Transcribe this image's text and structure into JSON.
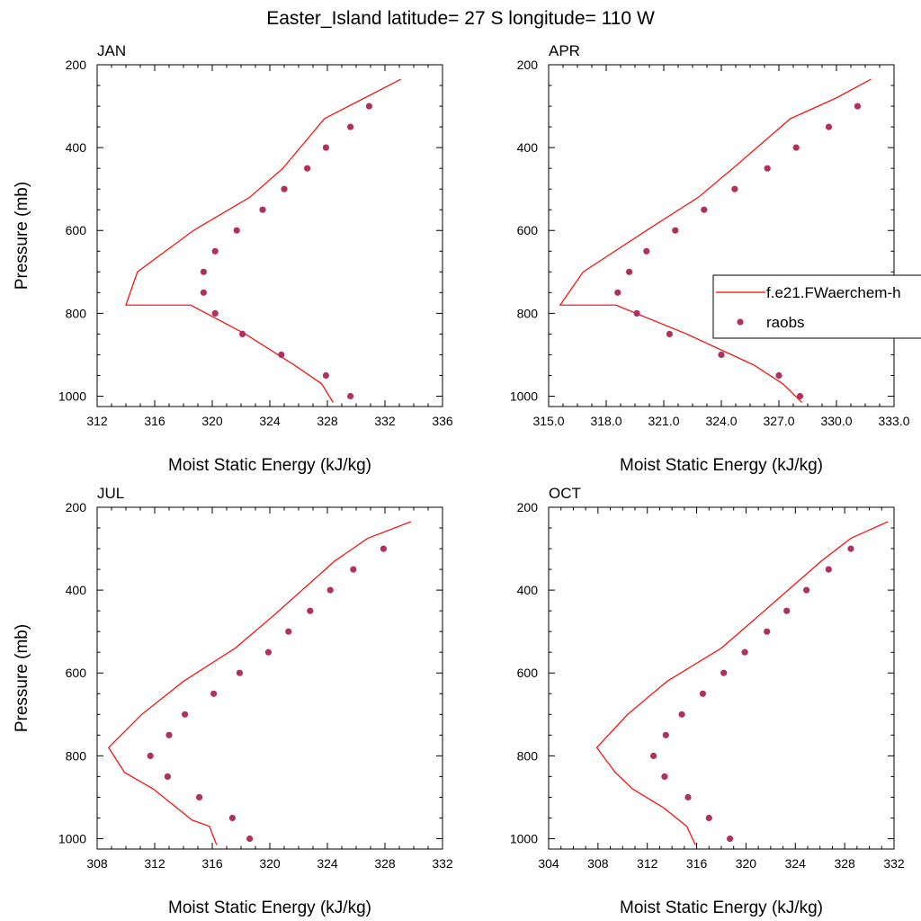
{
  "title": "Easter_Island  latitude= 27 S longitude= 110 W",
  "colors": {
    "model": "#ff0000",
    "obs": "#b03060"
  },
  "legend": {
    "model_label": "f.e21.FWaerchem-h",
    "obs_label": "raobs"
  },
  "chart_data": [
    {
      "type": "line",
      "title": "JAN",
      "xlabel": "Moist Static Energy (kJ/kg)",
      "ylabel": "Pressure (mb)",
      "xlim": [
        312,
        336
      ],
      "ylim": [
        200,
        1025
      ],
      "xticks": [
        312,
        316,
        320,
        324,
        328,
        332,
        336
      ],
      "xticklabels": [
        "312",
        "316",
        "320",
        "324",
        "328",
        "332",
        "336"
      ],
      "yticks": [
        200,
        400,
        600,
        800,
        1000
      ],
      "yticklabels": [
        "200",
        "400",
        "600",
        "800",
        "1000"
      ],
      "series": [
        {
          "kind": "line",
          "x": [
            328.4,
            327.6,
            325.7,
            322.3,
            318.5,
            314.0,
            314.8,
            318.7,
            322.6,
            324.9,
            327.8,
            330.6,
            333.1
          ],
          "y": [
            1015,
            970,
            925,
            850,
            780,
            780,
            700,
            600,
            520,
            450,
            330,
            280,
            235
          ]
        },
        {
          "kind": "scatter",
          "x": [
            329.6,
            327.9,
            324.8,
            322.1,
            320.2,
            319.4,
            319.4,
            320.2,
            321.7,
            323.5,
            325.0,
            326.6,
            327.9,
            329.6,
            330.9
          ],
          "y": [
            1000,
            950,
            900,
            850,
            800,
            750,
            700,
            650,
            600,
            550,
            500,
            450,
            400,
            350,
            300
          ]
        }
      ]
    },
    {
      "type": "line",
      "title": "APR",
      "xlabel": "Moist Static Energy (kJ/kg)",
      "ylabel": "",
      "xlim": [
        315,
        333
      ],
      "ylim": [
        200,
        1025
      ],
      "xticks": [
        315,
        318,
        321,
        324,
        327,
        330,
        333
      ],
      "xticklabels": [
        "315.0",
        "318.0",
        "321.0",
        "324.0",
        "327.0",
        "330.0",
        "333.0"
      ],
      "yticks": [
        200,
        400,
        600,
        800,
        1000
      ],
      "yticklabels": [
        "200",
        "400",
        "600",
        "800",
        "1000"
      ],
      "series": [
        {
          "kind": "line",
          "x": [
            328.2,
            327.2,
            325.7,
            322.2,
            318.5,
            315.6,
            316.8,
            320.1,
            322.8,
            324.6,
            327.6,
            330.0,
            331.8
          ],
          "y": [
            1015,
            970,
            925,
            850,
            780,
            780,
            700,
            600,
            520,
            450,
            330,
            280,
            235
          ]
        },
        {
          "kind": "scatter",
          "x": [
            328.1,
            327.0,
            324.0,
            321.3,
            319.6,
            318.6,
            319.2,
            320.1,
            321.6,
            323.1,
            324.7,
            326.4,
            327.9,
            329.6,
            331.1
          ],
          "y": [
            1000,
            950,
            900,
            850,
            800,
            750,
            700,
            650,
            600,
            550,
            500,
            450,
            400,
            350,
            300
          ]
        }
      ]
    },
    {
      "type": "line",
      "title": "JUL",
      "xlabel": "Moist Static Energy (kJ/kg)",
      "ylabel": "Pressure (mb)",
      "xlim": [
        308,
        332
      ],
      "ylim": [
        200,
        1025
      ],
      "xticks": [
        308,
        312,
        316,
        320,
        324,
        328,
        332
      ],
      "xticklabels": [
        "308",
        "312",
        "316",
        "320",
        "324",
        "328",
        "332"
      ],
      "yticks": [
        200,
        400,
        600,
        800,
        1000
      ],
      "yticklabels": [
        "200",
        "400",
        "600",
        "800",
        "1000"
      ],
      "series": [
        {
          "kind": "line",
          "x": [
            316.3,
            315.8,
            314.6,
            311.9,
            309.9,
            308.8,
            311.1,
            314.0,
            317.6,
            320.3,
            324.5,
            326.8,
            329.8
          ],
          "y": [
            1015,
            970,
            955,
            880,
            840,
            780,
            700,
            620,
            540,
            460,
            330,
            275,
            235
          ]
        },
        {
          "kind": "scatter",
          "x": [
            318.6,
            317.4,
            315.1,
            312.9,
            311.7,
            313.0,
            314.1,
            316.1,
            317.9,
            319.9,
            321.3,
            322.8,
            324.2,
            325.8,
            327.9
          ],
          "y": [
            1000,
            950,
            900,
            850,
            800,
            750,
            700,
            650,
            600,
            550,
            500,
            450,
            400,
            350,
            300
          ]
        }
      ]
    },
    {
      "type": "line",
      "title": "OCT",
      "xlabel": "Moist Static Energy (kJ/kg)",
      "ylabel": "",
      "xlim": [
        304,
        332
      ],
      "ylim": [
        200,
        1025
      ],
      "xticks": [
        304,
        308,
        312,
        316,
        320,
        324,
        328,
        332
      ],
      "xticklabels": [
        "304",
        "308",
        "312",
        "316",
        "320",
        "324",
        "328",
        "332"
      ],
      "yticks": [
        200,
        400,
        600,
        800,
        1000
      ],
      "yticklabels": [
        "200",
        "400",
        "600",
        "800",
        "1000"
      ],
      "series": [
        {
          "kind": "line",
          "x": [
            315.9,
            315.2,
            313.3,
            310.8,
            309.4,
            307.9,
            310.4,
            313.6,
            318.0,
            321.1,
            326.1,
            328.5,
            331.5
          ],
          "y": [
            1015,
            970,
            925,
            880,
            840,
            780,
            700,
            620,
            540,
            460,
            330,
            275,
            235
          ]
        },
        {
          "kind": "scatter",
          "x": [
            318.7,
            317.0,
            315.3,
            313.4,
            312.5,
            313.5,
            314.8,
            316.5,
            318.2,
            319.9,
            321.7,
            323.3,
            324.9,
            326.7,
            328.5
          ],
          "y": [
            1000,
            950,
            900,
            850,
            800,
            750,
            700,
            650,
            600,
            550,
            500,
            450,
            400,
            350,
            300
          ]
        }
      ]
    }
  ]
}
